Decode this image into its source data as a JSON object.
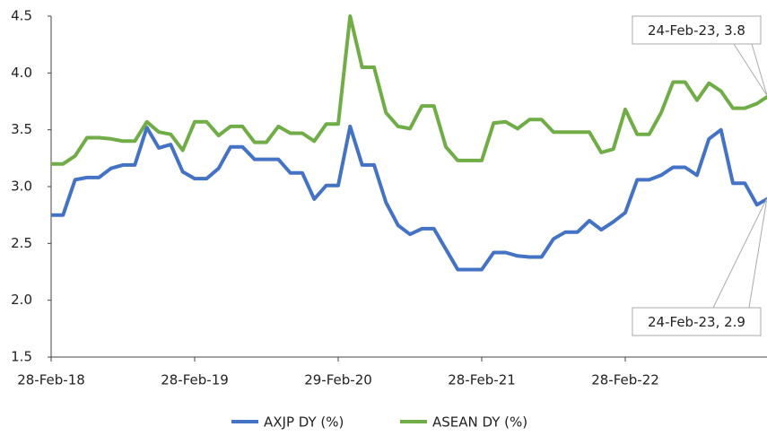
{
  "chart_data": {
    "type": "line",
    "categories": [
      "28-Feb-18",
      null,
      null,
      null,
      null,
      null,
      null,
      null,
      null,
      null,
      null,
      null,
      "28-Feb-19",
      null,
      null,
      null,
      null,
      null,
      null,
      null,
      null,
      null,
      null,
      null,
      "29-Feb-20",
      null,
      null,
      null,
      null,
      null,
      null,
      null,
      null,
      null,
      null,
      null,
      "28-Feb-21",
      null,
      null,
      null,
      null,
      null,
      null,
      null,
      null,
      null,
      null,
      null,
      "28-Feb-22",
      null,
      null,
      null,
      null,
      null,
      null,
      null,
      null,
      null,
      null,
      null,
      null
    ],
    "series": [
      {
        "name": "AXJP DY (%)",
        "color": "#4472c4",
        "values": [
          2.75,
          2.75,
          3.06,
          3.08,
          3.08,
          3.16,
          3.19,
          3.19,
          3.52,
          3.34,
          3.37,
          3.13,
          3.07,
          3.07,
          3.16,
          3.35,
          3.35,
          3.24,
          3.24,
          3.24,
          3.12,
          3.12,
          2.89,
          3.01,
          3.01,
          3.53,
          3.19,
          3.19,
          2.86,
          2.66,
          2.58,
          2.63,
          2.63,
          2.45,
          2.27,
          2.27,
          2.27,
          2.42,
          2.42,
          2.39,
          2.38,
          2.38,
          2.54,
          2.6,
          2.6,
          2.7,
          2.62,
          2.69,
          2.77,
          3.06,
          3.06,
          3.1,
          3.17,
          3.17,
          3.1,
          3.42,
          3.5,
          3.03,
          3.03,
          2.84,
          2.9
        ]
      },
      {
        "name": "ASEAN DY (%)",
        "color": "#70ad47",
        "values": [
          3.2,
          3.2,
          3.27,
          3.43,
          3.43,
          3.42,
          3.4,
          3.4,
          3.57,
          3.48,
          3.46,
          3.32,
          3.57,
          3.57,
          3.45,
          3.53,
          3.53,
          3.39,
          3.39,
          3.53,
          3.47,
          3.47,
          3.4,
          3.55,
          3.55,
          4.5,
          4.05,
          4.05,
          3.65,
          3.53,
          3.51,
          3.71,
          3.71,
          3.35,
          3.23,
          3.23,
          3.23,
          3.56,
          3.57,
          3.51,
          3.59,
          3.59,
          3.48,
          3.48,
          3.48,
          3.48,
          3.3,
          3.33,
          3.68,
          3.46,
          3.46,
          3.65,
          3.92,
          3.92,
          3.76,
          3.91,
          3.84,
          3.69,
          3.69,
          3.73,
          3.8
        ]
      }
    ],
    "ylim": [
      1.5,
      4.5
    ],
    "yticks": [
      1.5,
      {
        "value": 2,
        "label": "2.0"
      },
      2.5,
      {
        "value": 3,
        "label": "3.0"
      },
      3.5,
      {
        "value": 4,
        "label": "4.0"
      },
      4.5
    ],
    "grid": false,
    "legend": "bottom",
    "annotations": [
      "24-Feb-23, 3.8",
      "24-Feb-23, 2.9"
    ]
  }
}
